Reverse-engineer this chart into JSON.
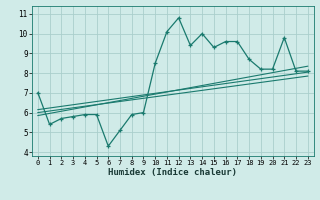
{
  "main_line_x": [
    0,
    1,
    2,
    3,
    4,
    5,
    6,
    7,
    8,
    9,
    10,
    11,
    12,
    13,
    14,
    15,
    16,
    17,
    18,
    19,
    20,
    21,
    22,
    23
  ],
  "main_line_y": [
    7.0,
    5.4,
    5.7,
    5.8,
    5.9,
    5.9,
    4.3,
    5.1,
    5.9,
    6.0,
    8.5,
    10.1,
    10.8,
    9.4,
    10.0,
    9.3,
    9.6,
    9.6,
    8.7,
    8.2,
    8.2,
    9.8,
    8.1,
    8.1
  ],
  "reg_line1_x": [
    0,
    23
  ],
  "reg_line1_y": [
    6.15,
    8.05
  ],
  "reg_line2_x": [
    0,
    23
  ],
  "reg_line2_y": [
    6.0,
    7.85
  ],
  "reg_line3_x": [
    0,
    23
  ],
  "reg_line3_y": [
    5.85,
    8.35
  ],
  "line_color": "#1a7a6e",
  "bg_color": "#d0ebe8",
  "grid_color": "#aacfcc",
  "xlabel": "Humidex (Indice chaleur)",
  "xlim": [
    -0.5,
    23.5
  ],
  "ylim": [
    3.8,
    11.4
  ],
  "yticks": [
    4,
    5,
    6,
    7,
    8,
    9,
    10,
    11
  ],
  "xticks": [
    0,
    1,
    2,
    3,
    4,
    5,
    6,
    7,
    8,
    9,
    10,
    11,
    12,
    13,
    14,
    15,
    16,
    17,
    18,
    19,
    20,
    21,
    22,
    23
  ]
}
